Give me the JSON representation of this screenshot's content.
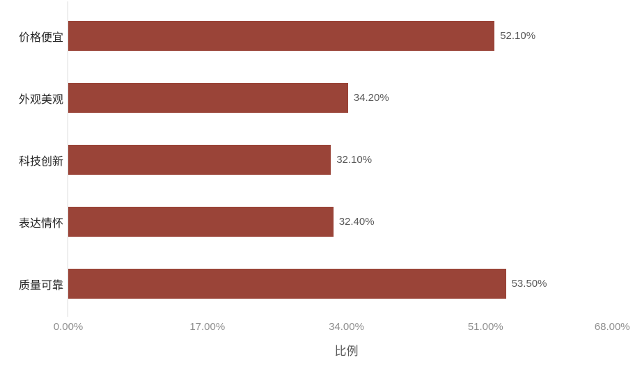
{
  "chart_data": {
    "type": "bar",
    "orientation": "horizontal",
    "title": "",
    "xlabel": "比例",
    "ylabel": "",
    "categories": [
      "价格便宜",
      "外观美观",
      "科技创新",
      "表达情怀",
      "质量可靠"
    ],
    "values": [
      52.1,
      34.2,
      32.1,
      32.4,
      53.5
    ],
    "value_labels": [
      "52.10%",
      "34.20%",
      "32.10%",
      "32.40%",
      "53.50%"
    ],
    "x_ticks": [
      "0.00%",
      "17.00%",
      "34.00%",
      "51.00%",
      "68.00%"
    ],
    "xlim": [
      0,
      68
    ],
    "grid": false,
    "legend": false,
    "colors": {
      "bar": "#9A4438",
      "axis_line": "#D9D9D9",
      "category_label": "#262626",
      "value_label": "#595959",
      "tick_label": "#8E8E8E",
      "axis_title": "#595959"
    }
  }
}
